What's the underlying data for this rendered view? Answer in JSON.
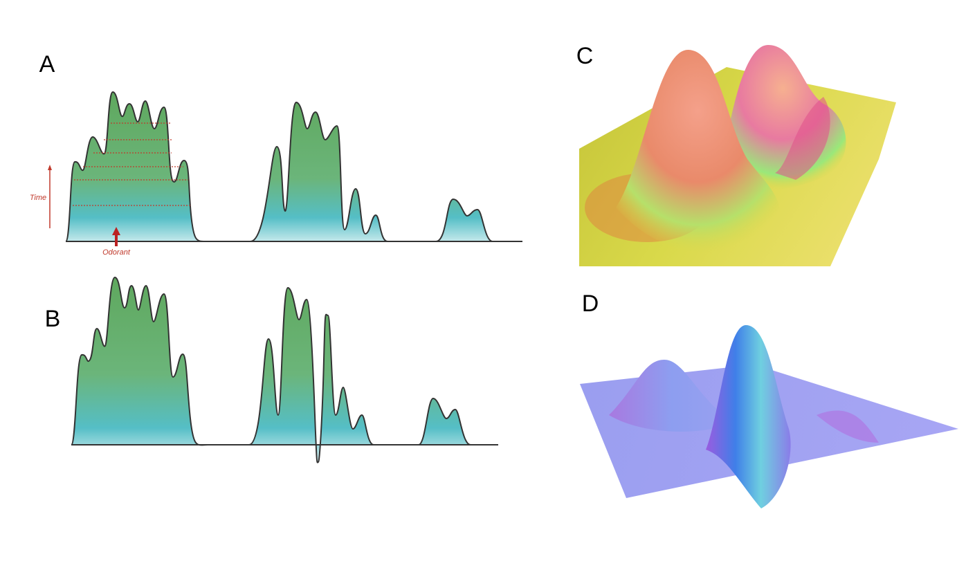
{
  "panels": [
    {
      "label": "A"
    },
    {
      "label": "B"
    },
    {
      "label": "C"
    },
    {
      "label": "D"
    }
  ],
  "annotations": {
    "time": "Time",
    "odorant": "Odorant"
  }
}
